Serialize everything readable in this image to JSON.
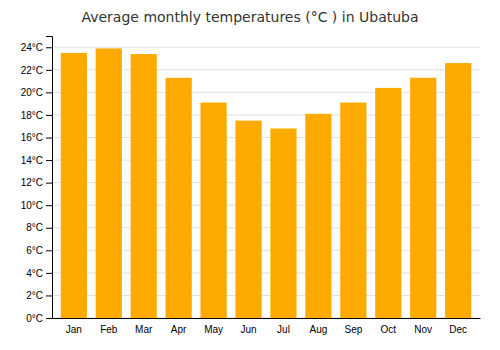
{
  "chart_data": {
    "type": "bar",
    "title": "Average monthly temperatures (°C ) in Ubatuba",
    "categories": [
      "Jan",
      "Feb",
      "Mar",
      "Apr",
      "May",
      "Jun",
      "Jul",
      "Aug",
      "Sep",
      "Oct",
      "Nov",
      "Dec"
    ],
    "values": [
      23.5,
      23.9,
      23.4,
      21.3,
      19.1,
      17.5,
      16.8,
      18.1,
      19.1,
      20.4,
      21.3,
      22.6
    ],
    "color": "#FFAA00",
    "ylim": [
      0,
      25
    ],
    "yticks": [
      {
        "value": 0,
        "label": "0°C"
      },
      {
        "value": 2,
        "label": "2°C"
      },
      {
        "value": 4,
        "label": "4°C"
      },
      {
        "value": 6,
        "label": "6°C"
      },
      {
        "value": 8,
        "label": "8°C"
      },
      {
        "value": 10,
        "label": "10°C"
      },
      {
        "value": 12,
        "label": "12°C"
      },
      {
        "value": 14,
        "label": "14°C"
      },
      {
        "value": 16,
        "label": "16°C"
      },
      {
        "value": 18,
        "label": "18°C"
      },
      {
        "value": 20,
        "label": "20°C"
      },
      {
        "value": 22,
        "label": "22°C"
      },
      {
        "value": 24,
        "label": "24°C"
      }
    ],
    "grid": true
  }
}
